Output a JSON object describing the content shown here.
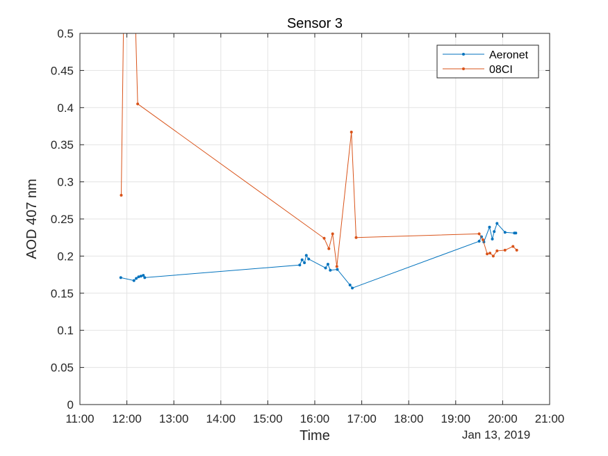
{
  "chart_data": {
    "type": "line",
    "title": "Sensor 3",
    "xlabel": "Time",
    "ylabel": "AOD 407 nm",
    "date_label": "Jan 13, 2019",
    "x_unit": "hours (time of day)",
    "xlim": [
      11,
      21
    ],
    "ylim": [
      0,
      0.5
    ],
    "x_ticks": [
      11,
      12,
      13,
      14,
      15,
      16,
      17,
      18,
      19,
      20,
      21
    ],
    "x_tick_labels": [
      "11:00",
      "12:00",
      "13:00",
      "14:00",
      "15:00",
      "16:00",
      "17:00",
      "18:00",
      "19:00",
      "20:00",
      "21:00"
    ],
    "y_ticks": [
      0,
      0.05,
      0.1,
      0.15,
      0.2,
      0.25,
      0.3,
      0.35,
      0.4,
      0.45,
      0.5
    ],
    "y_tick_labels": [
      "0",
      "0.05",
      "0.1",
      "0.15",
      "0.2",
      "0.25",
      "0.3",
      "0.35",
      "0.4",
      "0.45",
      "0.5"
    ],
    "grid": true,
    "legend_position": "top-right",
    "series": [
      {
        "name": "Aeronet",
        "color": "#0072BD",
        "x": [
          11.87,
          12.15,
          12.2,
          12.25,
          12.3,
          12.35,
          12.38,
          15.68,
          15.73,
          15.78,
          15.82,
          15.87,
          16.23,
          16.28,
          16.33,
          16.48,
          16.75,
          16.8,
          19.5,
          19.55,
          19.6,
          19.72,
          19.78,
          19.82,
          19.88,
          20.05,
          20.25,
          20.28
        ],
        "y": [
          0.171,
          0.167,
          0.17,
          0.172,
          0.173,
          0.174,
          0.171,
          0.188,
          0.195,
          0.191,
          0.201,
          0.196,
          0.184,
          0.189,
          0.181,
          0.182,
          0.161,
          0.157,
          0.22,
          0.226,
          0.219,
          0.239,
          0.223,
          0.233,
          0.244,
          0.232,
          0.231,
          0.231
        ]
      },
      {
        "name": "08CI",
        "color": "#D95319",
        "x": [
          11.88,
          11.93,
          12.18,
          12.23,
          16.2,
          16.3,
          16.38,
          16.47,
          16.78,
          16.88,
          19.5,
          19.58,
          19.67,
          19.73,
          19.8,
          19.88,
          20.05,
          20.22,
          20.3
        ],
        "y": [
          0.282,
          0.52,
          0.52,
          0.405,
          0.224,
          0.21,
          0.23,
          0.186,
          0.367,
          0.225,
          0.23,
          0.222,
          0.203,
          0.204,
          0.2,
          0.207,
          0.208,
          0.213,
          0.208
        ]
      }
    ]
  }
}
